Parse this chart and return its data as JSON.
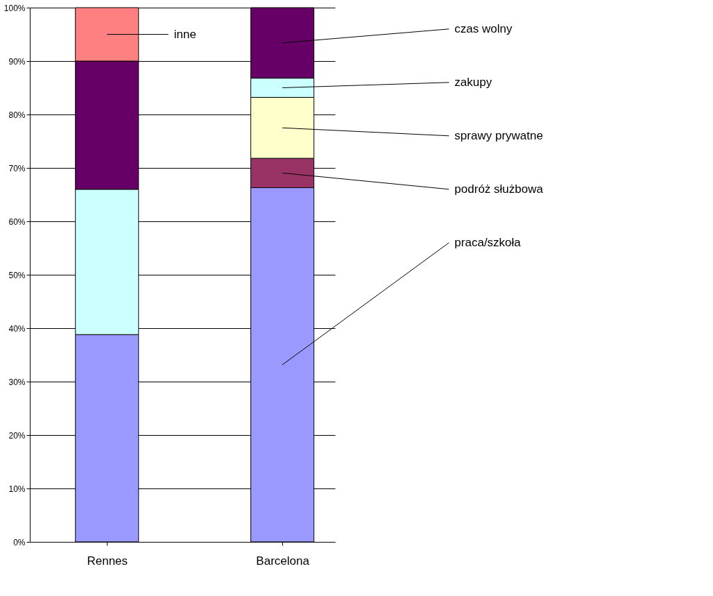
{
  "chart_data": {
    "type": "bar",
    "stacked": true,
    "categories": [
      "Rennes",
      "Barcelona"
    ],
    "series": [
      {
        "name": "praca/szkoła",
        "color": "#9999ff",
        "values": [
          38.8,
          66.3
        ]
      },
      {
        "name": "podróż służbowa",
        "color": "#993366",
        "values": [
          null,
          5.5
        ]
      },
      {
        "name": "sprawy prywatne",
        "color": "#ffffcc",
        "values": [
          null,
          11.4
        ]
      },
      {
        "name": "zakupy",
        "color": "#ccffff",
        "values": [
          27.2,
          3.6
        ]
      },
      {
        "name": "czas wolny",
        "color": "#660066",
        "values": [
          24,
          13.2
        ]
      },
      {
        "name": "inne",
        "color": "#ff8080",
        "values": [
          10,
          null
        ]
      }
    ],
    "ylim": [
      0,
      100
    ],
    "yticks": [
      {
        "value": 0,
        "label": "0%"
      },
      {
        "value": 10,
        "label": "10%"
      },
      {
        "value": 20,
        "label": "20%"
      },
      {
        "value": 30,
        "label": "30%"
      },
      {
        "value": 40,
        "label": "40%"
      },
      {
        "value": 50,
        "label": "50%"
      },
      {
        "value": 60,
        "label": "60%"
      },
      {
        "value": 70,
        "label": "70%"
      },
      {
        "value": 80,
        "label": "80%"
      },
      {
        "value": 90,
        "label": "90%"
      },
      {
        "value": 100,
        "label": "100%"
      }
    ],
    "grid": "y"
  }
}
